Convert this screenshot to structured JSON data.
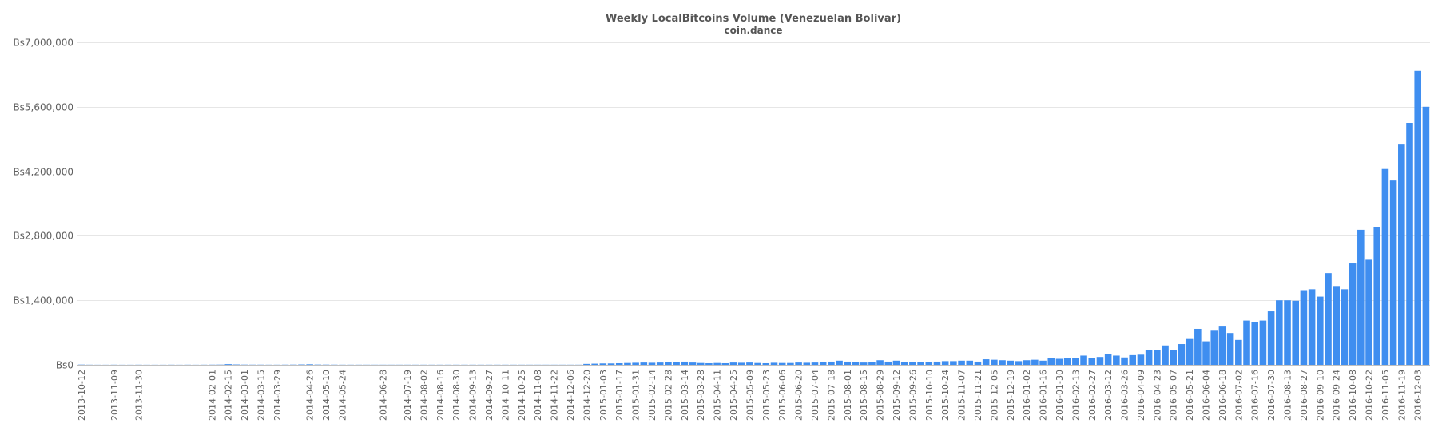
{
  "chart_data": {
    "type": "bar",
    "title": "Weekly LocalBitcoins Volume (Venezuelan Bolivar)",
    "subtitle": "coin.dance",
    "color": "#3f8ef0",
    "ylim": [
      0,
      7000000
    ],
    "yticks": [
      0,
      1400000,
      2800000,
      4200000,
      5600000,
      7000000
    ],
    "ytick_labels": [
      "Bs0",
      "Bs1,400,000",
      "Bs2,800,000",
      "Bs4,200,000",
      "Bs5,600,000",
      "Bs7,000,000"
    ],
    "grid": true,
    "categories": [
      "2013-10-12",
      "2013-10-19",
      "2013-10-26",
      "2013-11-02",
      "2013-11-09",
      "2013-11-16",
      "2013-11-23",
      "2013-11-30",
      "2013-12-07",
      "2013-12-14",
      "2013-12-21",
      "2013-12-28",
      "2014-01-04",
      "2014-01-11",
      "2014-01-18",
      "2014-01-25",
      "2014-02-01",
      "2014-02-08",
      "2014-02-15",
      "2014-02-22",
      "2014-03-01",
      "2014-03-08",
      "2014-03-15",
      "2014-03-22",
      "2014-03-29",
      "2014-04-05",
      "2014-04-12",
      "2014-04-19",
      "2014-04-26",
      "2014-05-03",
      "2014-05-10",
      "2014-05-17",
      "2014-05-24",
      "2014-05-31",
      "2014-06-07",
      "2014-06-14",
      "2014-06-21",
      "2014-06-28",
      "2014-07-05",
      "2014-07-12",
      "2014-07-19",
      "2014-07-26",
      "2014-08-02",
      "2014-08-09",
      "2014-08-16",
      "2014-08-23",
      "2014-08-30",
      "2014-09-06",
      "2014-09-13",
      "2014-09-20",
      "2014-09-27",
      "2014-10-04",
      "2014-10-11",
      "2014-10-18",
      "2014-10-25",
      "2014-11-01",
      "2014-11-08",
      "2014-11-15",
      "2014-11-22",
      "2014-11-29",
      "2014-12-06",
      "2014-12-13",
      "2014-12-20",
      "2014-12-27",
      "2015-01-03",
      "2015-01-10",
      "2015-01-17",
      "2015-01-24",
      "2015-01-31",
      "2015-02-07",
      "2015-02-14",
      "2015-02-21",
      "2015-02-28",
      "2015-03-07",
      "2015-03-14",
      "2015-03-21",
      "2015-03-28",
      "2015-04-04",
      "2015-04-11",
      "2015-04-18",
      "2015-04-25",
      "2015-05-02",
      "2015-05-09",
      "2015-05-16",
      "2015-05-23",
      "2015-05-30",
      "2015-06-06",
      "2015-06-13",
      "2015-06-20",
      "2015-06-27",
      "2015-07-04",
      "2015-07-11",
      "2015-07-18",
      "2015-07-25",
      "2015-08-01",
      "2015-08-08",
      "2015-08-15",
      "2015-08-22",
      "2015-08-29",
      "2015-09-05",
      "2015-09-12",
      "2015-09-19",
      "2015-09-26",
      "2015-10-03",
      "2015-10-10",
      "2015-10-17",
      "2015-10-24",
      "2015-10-31",
      "2015-11-07",
      "2015-11-14",
      "2015-11-21",
      "2015-11-28",
      "2015-12-05",
      "2015-12-12",
      "2015-12-19",
      "2015-12-26",
      "2016-01-02",
      "2016-01-09",
      "2016-01-16",
      "2016-01-23",
      "2016-01-30",
      "2016-02-06",
      "2016-02-13",
      "2016-02-20",
      "2016-02-27",
      "2016-03-05",
      "2016-03-12",
      "2016-03-19",
      "2016-03-26",
      "2016-04-02",
      "2016-04-09",
      "2016-04-16",
      "2016-04-23",
      "2016-04-30",
      "2016-05-07",
      "2016-05-14",
      "2016-05-21",
      "2016-05-28",
      "2016-06-04",
      "2016-06-11",
      "2016-06-18",
      "2016-06-25",
      "2016-07-02",
      "2016-07-09",
      "2016-07-16",
      "2016-07-23",
      "2016-07-30",
      "2016-08-06",
      "2016-08-13",
      "2016-08-20",
      "2016-08-27",
      "2016-09-03",
      "2016-09-10",
      "2016-09-17",
      "2016-09-24",
      "2016-10-01",
      "2016-10-08",
      "2016-10-15",
      "2016-10-22",
      "2016-10-29",
      "2016-11-05",
      "2016-11-12",
      "2016-11-19",
      "2016-11-26",
      "2016-12-03",
      "2016-12-10"
    ],
    "xtick_labels": [
      "2013-10-12",
      "2013-11-09",
      "2013-11-30",
      "2014-02-01",
      "2014-02-15",
      "2014-03-01",
      "2014-03-15",
      "2014-03-29",
      "2014-04-26",
      "2014-05-10",
      "2014-05-24",
      "2014-06-28",
      "2014-07-19",
      "2014-08-02",
      "2014-08-16",
      "2014-08-30",
      "2014-09-13",
      "2014-09-27",
      "2014-10-11",
      "2014-10-25",
      "2014-11-08",
      "2014-11-22",
      "2014-12-06",
      "2014-12-20",
      "2015-01-03",
      "2015-01-17",
      "2015-01-31",
      "2015-02-14",
      "2015-02-28",
      "2015-03-14",
      "2015-03-28",
      "2015-04-11",
      "2015-04-25",
      "2015-05-09",
      "2015-05-23",
      "2015-06-06",
      "2015-06-20",
      "2015-07-04",
      "2015-07-18",
      "2015-08-01",
      "2015-08-15",
      "2015-08-29",
      "2015-09-12",
      "2015-09-26",
      "2015-10-10",
      "2015-10-24",
      "2015-11-07",
      "2015-11-21",
      "2015-12-05",
      "2015-12-19",
      "2016-01-02",
      "2016-01-16",
      "2016-01-30",
      "2016-02-13",
      "2016-02-27",
      "2016-03-12",
      "2016-03-26",
      "2016-04-09",
      "2016-04-23",
      "2016-05-07",
      "2016-05-21",
      "2016-06-04",
      "2016-06-18",
      "2016-07-02",
      "2016-07-16",
      "2016-07-30",
      "2016-08-13",
      "2016-08-27",
      "2016-09-10",
      "2016-09-24",
      "2016-10-08",
      "2016-10-22",
      "2016-11-05",
      "2016-11-19",
      "2016-12-03"
    ],
    "values": [
      5000,
      3000,
      2000,
      2000,
      3000,
      2000,
      2000,
      3000,
      2000,
      2000,
      2000,
      3000,
      2000,
      3000,
      2000,
      3000,
      4000,
      5000,
      15000,
      8000,
      5000,
      4000,
      4000,
      3000,
      3000,
      4000,
      5000,
      8000,
      12000,
      6000,
      5000,
      4000,
      3000,
      3000,
      3000,
      3000,
      3000,
      3000,
      3000,
      3000,
      3000,
      3000,
      3000,
      3000,
      3000,
      3000,
      3000,
      3000,
      3000,
      3000,
      3000,
      3000,
      3000,
      3000,
      3000,
      3000,
      3000,
      3000,
      3000,
      3000,
      3000,
      3000,
      20000,
      25000,
      30000,
      30000,
      35000,
      40000,
      45000,
      50000,
      45000,
      50000,
      55000,
      60000,
      70000,
      50000,
      40000,
      35000,
      40000,
      35000,
      50000,
      45000,
      50000,
      40000,
      35000,
      45000,
      40000,
      40000,
      50000,
      45000,
      50000,
      60000,
      70000,
      90000,
      70000,
      60000,
      50000,
      60000,
      100000,
      70000,
      90000,
      60000,
      60000,
      60000,
      55000,
      70000,
      80000,
      80000,
      90000,
      90000,
      70000,
      120000,
      110000,
      100000,
      90000,
      80000,
      100000,
      110000,
      90000,
      150000,
      130000,
      140000,
      140000,
      200000,
      150000,
      170000,
      230000,
      200000,
      160000,
      210000,
      220000,
      320000,
      320000,
      420000,
      320000,
      450000,
      560000,
      780000,
      510000,
      740000,
      830000,
      690000,
      540000,
      960000,
      920000,
      960000,
      1160000,
      1400000,
      1400000,
      1390000,
      1620000,
      1640000,
      1480000,
      1990000,
      1710000,
      1640000,
      2200000,
      2930000,
      2280000,
      2980000,
      4250000,
      4000000,
      4780000,
      5250000,
      6380000,
      5600000
    ]
  }
}
